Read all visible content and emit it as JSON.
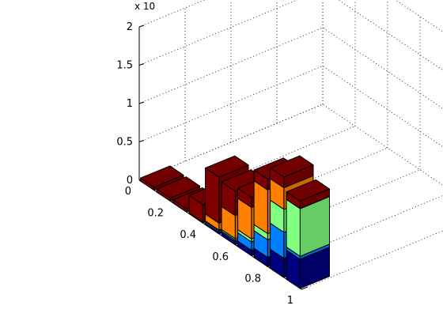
{
  "chart_data": {
    "type": "bar",
    "style": "3d-stacked",
    "z_axis": {
      "exponent_label": "x 10",
      "ticks": [
        "0",
        "0.5",
        "1",
        "1.5",
        "2"
      ],
      "tick_values": [
        0,
        0.5,
        1,
        1.5,
        2
      ],
      "range": [
        0,
        2
      ]
    },
    "x_axis": {
      "ticks": [
        "0",
        "0.2",
        "0.4",
        "0.6",
        "0.8",
        "1"
      ],
      "tick_values": [
        0,
        0.2,
        0.4,
        0.6,
        0.8,
        1
      ],
      "range": [
        0,
        1
      ]
    },
    "grid": true,
    "categories": [
      0.05,
      0.15,
      0.25,
      0.35,
      0.45,
      0.55,
      0.65,
      0.75,
      0.85,
      0.95
    ],
    "series": [
      {
        "color": "#00007f",
        "values": [
          0,
          0,
          0,
          0,
          0.02,
          0.04,
          0.07,
          0.12,
          0.25,
          0.38
        ]
      },
      {
        "color": "#0080ff",
        "values": [
          0,
          0,
          0,
          0,
          0.02,
          0.02,
          0.11,
          0.23,
          0.34,
          0.04
        ]
      },
      {
        "color": "#80ff80",
        "values": [
          0,
          0,
          0,
          0,
          0.01,
          0.02,
          0.04,
          0.08,
          0.3,
          0.62
        ]
      },
      {
        "color": "#ff7f00",
        "values": [
          0,
          0,
          0,
          0.01,
          0.09,
          0.3,
          0.41,
          0.57,
          0.28,
          0
        ]
      },
      {
        "color": "#7f0000",
        "values": [
          0.04,
          0.04,
          0.04,
          0.23,
          0.6,
          0.32,
          0.13,
          0.14,
          0.14,
          0.1
        ]
      }
    ]
  }
}
